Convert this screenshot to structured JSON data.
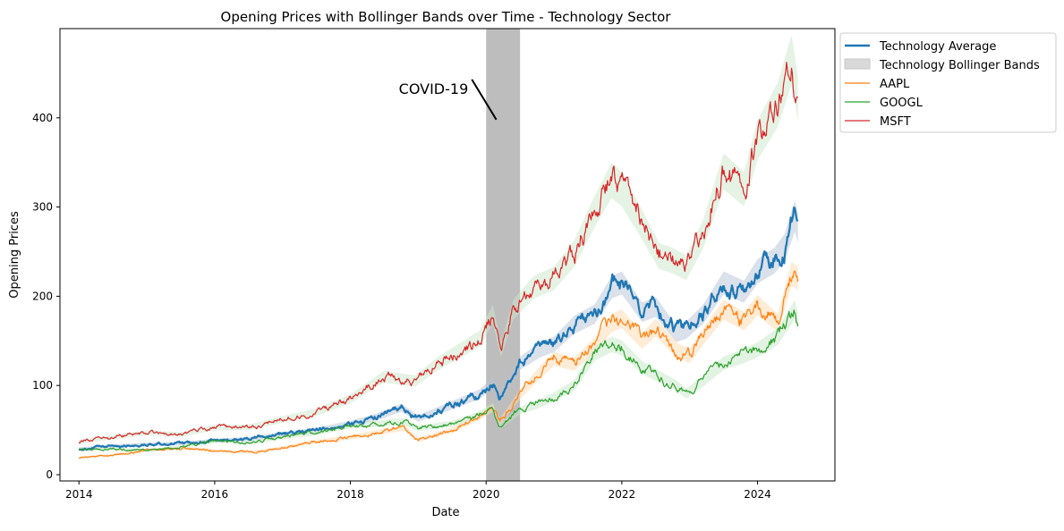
{
  "chart_data": {
    "type": "line",
    "title": "Opening Prices with Bollinger Bands over Time - Technology Sector",
    "xlabel": "Date",
    "ylabel": "Opening Prices",
    "xlim": [
      2013.72,
      2025.14
    ],
    "ylim": [
      -7,
      500
    ],
    "x_ticks": [
      2014,
      2016,
      2018,
      2020,
      2022,
      2024
    ],
    "x_tick_labels": [
      "2014",
      "2016",
      "2018",
      "2020",
      "2022",
      "2024"
    ],
    "y_ticks": [
      0,
      100,
      200,
      300,
      400
    ],
    "y_tick_labels": [
      "0",
      "100",
      "200",
      "300",
      "400"
    ],
    "grid": false,
    "legend_position": "outside-top-right",
    "legend": [
      {
        "label": "Technology Average",
        "kind": "line-thick",
        "color": "#1f77b4"
      },
      {
        "label": "Technology Bollinger Bands",
        "kind": "band",
        "color": "#d9d9d9"
      },
      {
        "label": "AAPL",
        "kind": "line",
        "color": "#ff7f0e"
      },
      {
        "label": "GOOGL",
        "kind": "line",
        "color": "#2ca02c"
      },
      {
        "label": "MSFT",
        "kind": "line",
        "color": "#d62728"
      }
    ],
    "shaded_period": {
      "x_start": 2020.0,
      "x_end": 2020.5,
      "color": "#999999"
    },
    "annotation": {
      "text": "COVID-19",
      "text_at": [
        2019.75,
        427
      ],
      "arrow_to": [
        2020.15,
        398
      ]
    },
    "series": [
      {
        "name": "Technology Average",
        "color": "#1f77b4",
        "width": 2.2,
        "band_color": "#b7c4d6",
        "x": [
          2014.0,
          2014.5,
          2015.0,
          2015.5,
          2016.0,
          2016.5,
          2017.0,
          2017.5,
          2018.0,
          2018.4,
          2018.75,
          2019.0,
          2019.5,
          2019.9,
          2020.1,
          2020.2,
          2020.5,
          2020.8,
          2021.0,
          2021.3,
          2021.6,
          2021.85,
          2022.0,
          2022.3,
          2022.5,
          2022.8,
          2022.95,
          2023.2,
          2023.5,
          2023.8,
          2024.0,
          2024.25,
          2024.4,
          2024.55,
          2024.6
        ],
        "values": [
          29,
          32,
          34,
          35,
          38,
          40,
          45,
          50,
          57,
          65,
          75,
          63,
          78,
          90,
          103,
          85,
          125,
          140,
          146,
          168,
          180,
          210,
          215,
          182,
          188,
          158,
          162,
          180,
          215,
          205,
          228,
          240,
          255,
          290,
          275
        ]
      },
      {
        "name": "AAPL",
        "color": "#ff7f0e",
        "width": 1.2,
        "band_color": "#ffd9b0",
        "x": [
          2014.0,
          2014.5,
          2015.0,
          2015.5,
          2016.0,
          2016.5,
          2017.0,
          2017.5,
          2018.0,
          2018.6,
          2018.8,
          2019.0,
          2019.5,
          2019.9,
          2020.1,
          2020.2,
          2020.5,
          2020.8,
          2021.0,
          2021.3,
          2021.6,
          2021.85,
          2022.0,
          2022.3,
          2022.5,
          2022.8,
          2023.0,
          2023.2,
          2023.5,
          2023.8,
          2024.0,
          2024.3,
          2024.5,
          2024.6
        ],
        "values": [
          19,
          22,
          27,
          30,
          27,
          25,
          30,
          37,
          42,
          50,
          52,
          39,
          50,
          65,
          75,
          59,
          90,
          115,
          130,
          124,
          145,
          170,
          175,
          150,
          165,
          140,
          133,
          155,
          185,
          172,
          190,
          170,
          225,
          220
        ]
      },
      {
        "name": "GOOGL",
        "color": "#2ca02c",
        "width": 1.2,
        "band_color": "#c8e8c8",
        "x": [
          2014.0,
          2014.5,
          2015.0,
          2015.5,
          2016.0,
          2016.5,
          2017.0,
          2017.5,
          2018.0,
          2018.4,
          2018.75,
          2019.0,
          2019.5,
          2019.9,
          2020.1,
          2020.2,
          2020.5,
          2020.8,
          2021.0,
          2021.3,
          2021.6,
          2021.85,
          2022.0,
          2022.3,
          2022.5,
          2022.8,
          2022.95,
          2023.2,
          2023.5,
          2023.8,
          2024.0,
          2024.3,
          2024.55,
          2024.6
        ],
        "values": [
          28,
          29,
          27,
          31,
          38,
          36,
          42,
          47,
          55,
          57,
          60,
          52,
          57,
          67,
          76,
          54,
          72,
          80,
          87,
          100,
          136,
          146,
          142,
          120,
          112,
          100,
          91,
          105,
          125,
          133,
          140,
          155,
          185,
          170
        ]
      },
      {
        "name": "MSFT",
        "color": "#d62728",
        "width": 1.2,
        "band_color": "#cce8cc",
        "x": [
          2014.0,
          2014.5,
          2015.0,
          2015.5,
          2016.0,
          2016.5,
          2017.0,
          2017.5,
          2018.0,
          2018.5,
          2018.95,
          2019.3,
          2019.9,
          2020.1,
          2020.22,
          2020.4,
          2020.7,
          2021.0,
          2021.3,
          2021.6,
          2021.85,
          2022.0,
          2022.3,
          2022.55,
          2022.75,
          2022.95,
          2023.2,
          2023.5,
          2023.8,
          2024.0,
          2024.3,
          2024.5,
          2024.6
        ],
        "values": [
          37,
          42,
          47,
          45,
          53,
          53,
          62,
          70,
          85,
          110,
          105,
          125,
          152,
          180,
          140,
          185,
          210,
          220,
          248,
          295,
          330,
          320,
          280,
          245,
          240,
          232,
          270,
          340,
          320,
          375,
          415,
          465,
          420
        ]
      }
    ]
  }
}
